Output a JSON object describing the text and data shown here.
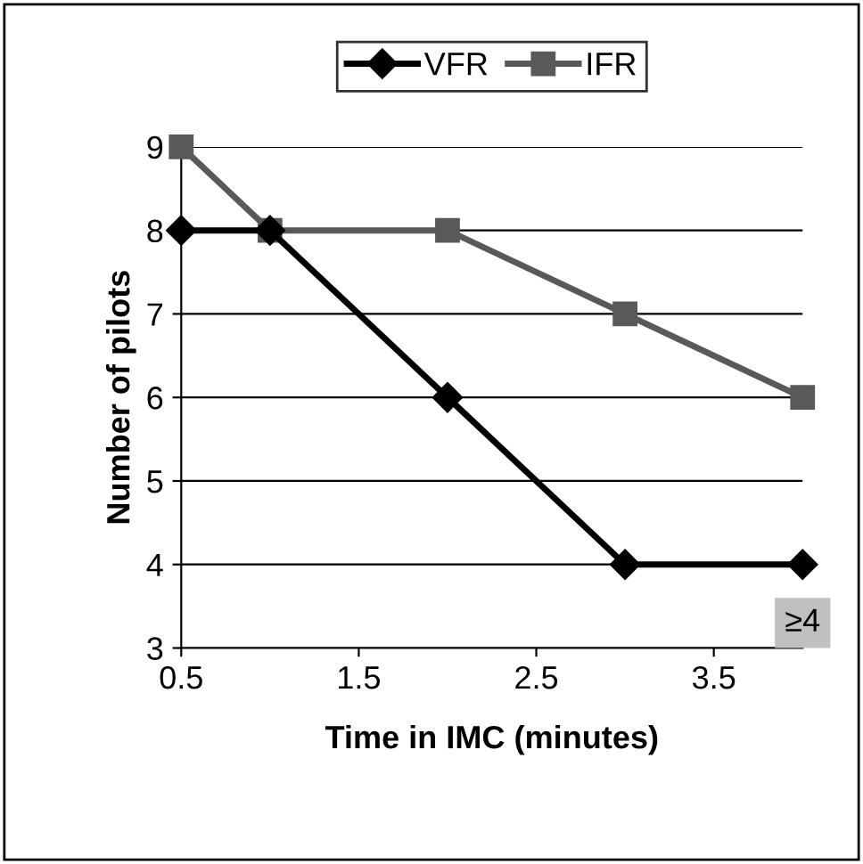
{
  "chart_data": {
    "type": "line",
    "xlabel": "Time in IMC (minutes)",
    "ylabel": "Number of pilots",
    "x": [
      0.5,
      1,
      2,
      3,
      4
    ],
    "series": [
      {
        "name": "VFR",
        "color": "#000000",
        "marker": "diamond",
        "values": [
          8,
          8,
          6,
          4,
          4
        ]
      },
      {
        "name": "IFR",
        "color": "#595959",
        "marker": "square",
        "values": [
          9,
          8,
          8,
          7,
          6
        ]
      }
    ],
    "xlim": [
      0.5,
      4
    ],
    "xticks": [
      0.5,
      1.5,
      2.5,
      3.5
    ],
    "ylim": [
      3,
      9
    ],
    "yticks": [
      3,
      4,
      5,
      6,
      7,
      8,
      9
    ],
    "grid": "y",
    "legend": "top",
    "line_style": "solid",
    "annotations": [
      {
        "text": "≥4",
        "x": 4,
        "y": 3.3
      }
    ]
  }
}
